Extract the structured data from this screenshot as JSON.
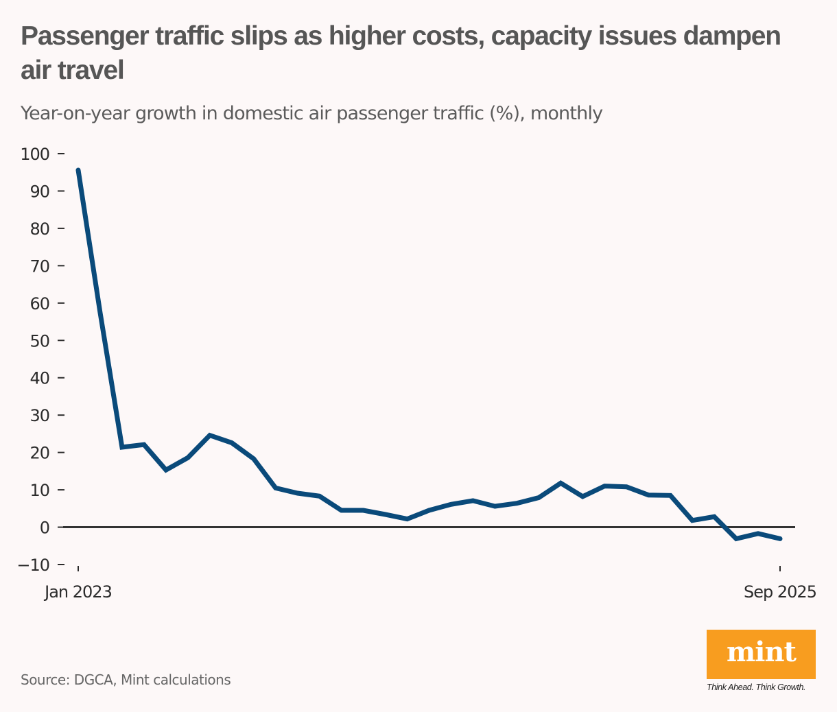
{
  "header": {
    "title": "Passenger traffic slips as higher costs, capacity issues dampen air travel",
    "subtitle": "Year-on-year growth in domestic air passenger traffic (%), monthly"
  },
  "footer": {
    "source": "Source: DGCA, Mint calculations",
    "logo_text": "mint",
    "tagline": "Think Ahead. Think Growth."
  },
  "colors": {
    "background": "#fdf8f8",
    "line": "#0a4a7a",
    "zero_line": "#333333",
    "logo": "#f89d1f"
  },
  "chart_data": {
    "type": "line",
    "title": "Passenger traffic slips as higher costs, capacity issues dampen air travel",
    "subtitle": "Year-on-year growth in domestic air passenger traffic (%), monthly",
    "xlabel": "",
    "ylabel": "",
    "ylim": [
      -10,
      100
    ],
    "yticks": [
      100,
      90,
      80,
      70,
      60,
      50,
      40,
      30,
      20,
      10,
      0,
      -10
    ],
    "ytick_labels": [
      "100",
      "90",
      "80",
      "70",
      "60",
      "50",
      "40",
      "30",
      "20",
      "10",
      "0",
      "−10"
    ],
    "xtick_labels": [
      {
        "index": 0,
        "label": "Jan 2023"
      },
      {
        "index": 32,
        "label": "Sep 2025"
      }
    ],
    "grid": false,
    "legend": "none",
    "x": [
      "Jan 2023",
      "Feb 2023",
      "Mar 2023",
      "Apr 2023",
      "May 2023",
      "Jun 2023",
      "Jul 2023",
      "Aug 2023",
      "Sep 2023",
      "Oct 2023",
      "Nov 2023",
      "Dec 2023",
      "Jan 2024",
      "Feb 2024",
      "Mar 2024",
      "Apr 2024",
      "May 2024",
      "Jun 2024",
      "Jul 2024",
      "Aug 2024",
      "Sep 2024",
      "Oct 2024",
      "Nov 2024",
      "Dec 2024",
      "Jan 2025",
      "Feb 2025",
      "Mar 2025",
      "Apr 2025",
      "May 2025",
      "Jun 2025",
      "Jul 2025",
      "Aug 2025",
      "Sep 2025"
    ],
    "series": [
      {
        "name": "Domestic air passenger traffic YoY growth (%)",
        "values": [
          95.6,
          57.4,
          21.4,
          22.1,
          15.3,
          18.6,
          24.6,
          22.6,
          18.3,
          10.5,
          9.1,
          8.3,
          4.5,
          4.5,
          3.4,
          2.2,
          4.5,
          6.1,
          7.1,
          5.6,
          6.4,
          7.9,
          11.8,
          8.2,
          11.0,
          10.8,
          8.6,
          8.5,
          1.8,
          2.8,
          -3.1,
          -1.7,
          -3.1
        ]
      }
    ]
  }
}
